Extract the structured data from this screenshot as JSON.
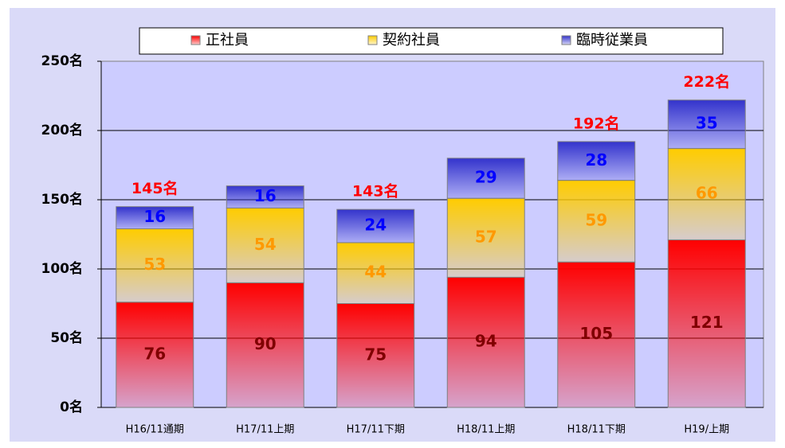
{
  "chart_data": {
    "type": "bar",
    "stacked": true,
    "categories": [
      "H16/11通期",
      "H17/11上期",
      "H17/11下期",
      "H18/11上期",
      "H18/11下期",
      "H19/上期"
    ],
    "series": [
      {
        "name": "正社員",
        "color": "#ff0000",
        "label_color": "#800000",
        "values": [
          76,
          90,
          75,
          94,
          105,
          121
        ]
      },
      {
        "name": "契約社員",
        "color": "#ffcc00",
        "label_color": "#ff9900",
        "values": [
          53,
          54,
          44,
          57,
          59,
          66
        ]
      },
      {
        "name": "臨時従業員",
        "color": "#3333cc",
        "label_color": "#0000ff",
        "values": [
          16,
          16,
          24,
          29,
          28,
          35
        ]
      }
    ],
    "total_labels": [
      "145名",
      null,
      "143名",
      null,
      "192名",
      "222名"
    ],
    "ylim": [
      0,
      250
    ],
    "yticks": [
      {
        "value": 0,
        "label": "0名"
      },
      {
        "value": 50,
        "label": "50名"
      },
      {
        "value": 100,
        "label": "100名"
      },
      {
        "value": 150,
        "label": "150名"
      },
      {
        "value": 200,
        "label": "200名"
      },
      {
        "value": 250,
        "label": "250名"
      }
    ],
    "grid": true,
    "legend": "top"
  }
}
